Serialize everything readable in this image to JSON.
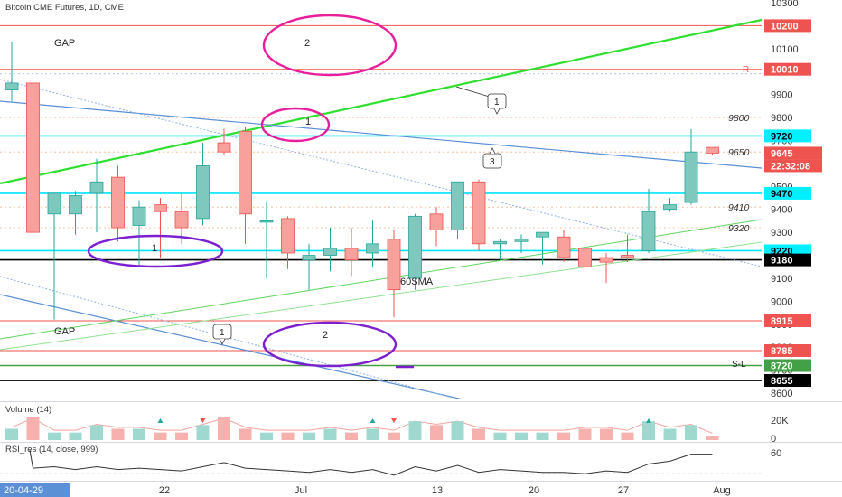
{
  "header": {
    "title": "Bitcoin CME Futures, 1D, CME"
  },
  "chart_data": {
    "type": "candlestick",
    "title": "Bitcoin CME Futures, 1D, CME",
    "ylim": [
      8600,
      10300
    ],
    "y_ticks": [
      8600,
      8700,
      8800,
      8900,
      9000,
      9100,
      9200,
      9300,
      9400,
      9500,
      9600,
      9700,
      9800,
      9900,
      10000,
      10100,
      10200,
      10300
    ],
    "x_labels": [
      "20-04-29",
      "22",
      "Jul",
      "13",
      "20",
      "27",
      "Aug"
    ],
    "series": [
      {
        "name": "candles",
        "values": [
          {
            "o": 9920,
            "h": 10130,
            "l": 9870,
            "c": 9950
          },
          {
            "o": 9950,
            "h": 10010,
            "l": 9070,
            "c": 9300
          },
          {
            "o": 9380,
            "h": 9470,
            "l": 8920,
            "c": 9470
          },
          {
            "o": 9380,
            "h": 9480,
            "l": 9290,
            "c": 9460
          },
          {
            "o": 9470,
            "h": 9620,
            "l": 9300,
            "c": 9520
          },
          {
            "o": 9540,
            "h": 9590,
            "l": 9260,
            "c": 9320
          },
          {
            "o": 9330,
            "h": 9440,
            "l": 9150,
            "c": 9410
          },
          {
            "o": 9420,
            "h": 9450,
            "l": 9190,
            "c": 9390
          },
          {
            "o": 9390,
            "h": 9470,
            "l": 9250,
            "c": 9320
          },
          {
            "o": 9360,
            "h": 9690,
            "l": 9330,
            "c": 9590
          },
          {
            "o": 9690,
            "h": 9750,
            "l": 9640,
            "c": 9650
          },
          {
            "o": 9740,
            "h": 9760,
            "l": 9250,
            "c": 9380
          },
          {
            "o": 9350,
            "h": 9430,
            "l": 9100,
            "c": 9350
          },
          {
            "o": 9360,
            "h": 9370,
            "l": 9140,
            "c": 9210
          },
          {
            "o": 9180,
            "h": 9250,
            "l": 9050,
            "c": 9200
          },
          {
            "o": 9200,
            "h": 9320,
            "l": 9130,
            "c": 9230
          },
          {
            "o": 9230,
            "h": 9320,
            "l": 9110,
            "c": 9180
          },
          {
            "o": 9210,
            "h": 9350,
            "l": 9150,
            "c": 9250
          },
          {
            "o": 9270,
            "h": 9310,
            "l": 8930,
            "c": 9050
          },
          {
            "o": 9100,
            "h": 9380,
            "l": 9050,
            "c": 9370
          },
          {
            "o": 9380,
            "h": 9410,
            "l": 9240,
            "c": 9310
          },
          {
            "o": 9310,
            "h": 9500,
            "l": 9270,
            "c": 9520
          },
          {
            "o": 9520,
            "h": 9530,
            "l": 9220,
            "c": 9250
          },
          {
            "o": 9250,
            "h": 9270,
            "l": 9180,
            "c": 9260
          },
          {
            "o": 9260,
            "h": 9290,
            "l": 9210,
            "c": 9270
          },
          {
            "o": 9280,
            "h": 9300,
            "l": 9160,
            "c": 9300
          },
          {
            "o": 9280,
            "h": 9310,
            "l": 9170,
            "c": 9190
          },
          {
            "o": 9230,
            "h": 9240,
            "l": 9050,
            "c": 9150
          },
          {
            "o": 9190,
            "h": 9210,
            "l": 9080,
            "c": 9170
          },
          {
            "o": 9200,
            "h": 9290,
            "l": 9170,
            "c": 9190
          },
          {
            "o": 9220,
            "h": 9490,
            "l": 9210,
            "c": 9390
          },
          {
            "o": 9400,
            "h": 9450,
            "l": 9390,
            "c": 9420
          },
          {
            "o": 9430,
            "h": 9750,
            "l": 9420,
            "c": 9650
          },
          {
            "o": 9670,
            "h": 9670,
            "l": 9635,
            "c": 9645
          }
        ]
      },
      {
        "name": "Volume (14)",
        "values": [
          3,
          6,
          2,
          2,
          4,
          3,
          3,
          2,
          2,
          4,
          6,
          3,
          2,
          2,
          2,
          3,
          2,
          3,
          2,
          5,
          4,
          5,
          3,
          2,
          2,
          2,
          2,
          3,
          3,
          2,
          5,
          3,
          4,
          1
        ]
      },
      {
        "name": "RSI_res (14, close, 999)",
        "values": [
          62,
          49,
          50,
          48,
          50,
          48,
          49,
          48,
          47,
          50,
          53,
          49,
          48,
          47,
          46,
          48,
          46,
          48,
          44,
          50,
          47,
          51,
          46,
          48,
          47,
          46,
          46,
          45,
          47,
          46,
          52,
          54,
          59,
          59
        ]
      }
    ],
    "levels": [
      {
        "value": 10200,
        "label": "10200",
        "color": "#ef5350",
        "tag": "red"
      },
      {
        "value": 10010,
        "label": "10010",
        "color": "#ef5350",
        "tag": "red"
      },
      {
        "value": 9720,
        "label": "9720",
        "color": "#00e5ff",
        "tag": "cyan"
      },
      {
        "value": 9470,
        "label": "9470",
        "color": "#00e5ff",
        "tag": "cyan"
      },
      {
        "value": 9220,
        "label": "9220",
        "color": "#00e5ff",
        "tag": "cyan"
      },
      {
        "value": 9180,
        "label": "9180",
        "color": "#000000",
        "tag": "black"
      },
      {
        "value": 8915,
        "label": "8915",
        "color": "#ef5350",
        "tag": "red"
      },
      {
        "value": 8785,
        "label": "8785",
        "color": "#ef5350",
        "tag": "red"
      },
      {
        "value": 8720,
        "label": "8720",
        "color": "#43a047",
        "tag": "green"
      },
      {
        "value": 8655,
        "label": "8655",
        "color": "#000000",
        "tag": "black"
      }
    ],
    "price_tags": [
      {
        "value": 9645,
        "label": "9645",
        "color": "#ef5350"
      },
      {
        "value": 9590,
        "label": "22:32:08",
        "color": "#ef5350"
      }
    ],
    "inline_labels": [
      {
        "value": 9800,
        "text": "9800"
      },
      {
        "value": 9650,
        "text": "9650"
      },
      {
        "value": 9410,
        "text": "9410"
      },
      {
        "value": 9320,
        "text": "9320"
      }
    ],
    "annotations": [
      "GAP",
      "GAP",
      "60SMA",
      "R",
      "S-L",
      "1",
      "2",
      "1",
      "2",
      "1",
      "2",
      "3"
    ],
    "volume_axis": [
      "20K",
      "0"
    ],
    "rsi_axis": [
      "60"
    ]
  },
  "colors": {
    "up": "#26a69a",
    "up_fill": "#7fc8bd",
    "down": "#ef5350",
    "down_fill": "#f7a09c",
    "magenta": "#e91e9c",
    "purple": "#7b1fd0",
    "trend_green": "#2ee02e",
    "trend_blue": "#5b8fd6"
  }
}
